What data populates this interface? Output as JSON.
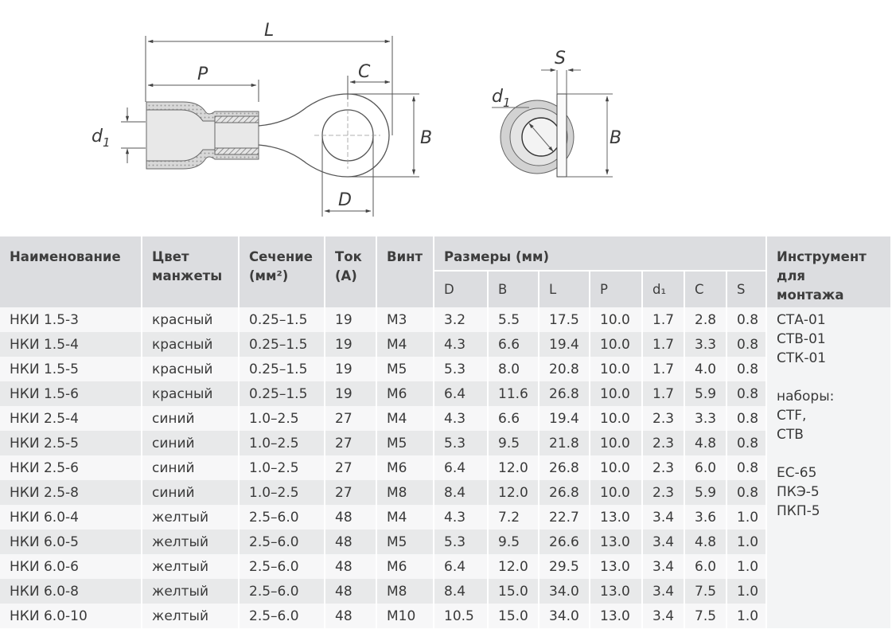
{
  "drawing": {
    "labels": {
      "L": "L",
      "P": "P",
      "C": "C",
      "B": "B",
      "D": "D",
      "d1": "d",
      "d1_sub": "1",
      "S": "S",
      "B2": "B",
      "d1b": "d",
      "d1b_sub": "1"
    }
  },
  "table": {
    "headers": {
      "name": "Наименование",
      "color_1": "Цвет",
      "color_2": "манжеты",
      "section_1": "Сечение",
      "section_2": "(мм²)",
      "current_1": "Ток",
      "current_2": "(А)",
      "screw": "Винт",
      "dimensions": "Размеры (мм)",
      "tool_1": "Инструмент",
      "tool_2": "для",
      "tool_3": "монтажа",
      "dims": [
        "D",
        "B",
        "L",
        "P",
        "d₁",
        "C",
        "S"
      ]
    },
    "rows": [
      [
        "НКИ 1.5-3",
        "красный",
        "0.25–1.5",
        "19",
        "М3",
        "3.2",
        "5.5",
        "17.5",
        "10.0",
        "1.7",
        "2.8",
        "0.8"
      ],
      [
        "НКИ 1.5-4",
        "красный",
        "0.25–1.5",
        "19",
        "М4",
        "4.3",
        "6.6",
        "19.4",
        "10.0",
        "1.7",
        "3.3",
        "0.8"
      ],
      [
        "НКИ 1.5-5",
        "красный",
        "0.25–1.5",
        "19",
        "М5",
        "5.3",
        "8.0",
        "20.8",
        "10.0",
        "1.7",
        "4.0",
        "0.8"
      ],
      [
        "НКИ 1.5-6",
        "красный",
        "0.25–1.5",
        "19",
        "М6",
        "6.4",
        "11.6",
        "26.8",
        "10.0",
        "1.7",
        "5.9",
        "0.8"
      ],
      [
        "НКИ 2.5-4",
        "синий",
        "1.0–2.5",
        "27",
        "М4",
        "4.3",
        "6.6",
        "19.4",
        "10.0",
        "2.3",
        "3.3",
        "0.8"
      ],
      [
        "НКИ 2.5-5",
        "синий",
        "1.0–2.5",
        "27",
        "М5",
        "5.3",
        "9.5",
        "21.8",
        "10.0",
        "2.3",
        "4.8",
        "0.8"
      ],
      [
        "НКИ 2.5-6",
        "синий",
        "1.0–2.5",
        "27",
        "М6",
        "6.4",
        "12.0",
        "26.8",
        "10.0",
        "2.3",
        "6.0",
        "0.8"
      ],
      [
        "НКИ 2.5-8",
        "синий",
        "1.0–2.5",
        "27",
        "М8",
        "8.4",
        "12.0",
        "26.8",
        "10.0",
        "2.3",
        "5.9",
        "0.8"
      ],
      [
        "НКИ 6.0-4",
        "желтый",
        "2.5–6.0",
        "48",
        "М4",
        "4.3",
        "7.2",
        "22.7",
        "13.0",
        "3.4",
        "3.6",
        "1.0"
      ],
      [
        "НКИ 6.0-5",
        "желтый",
        "2.5–6.0",
        "48",
        "М5",
        "5.3",
        "9.5",
        "26.6",
        "13.0",
        "3.4",
        "4.8",
        "1.0"
      ],
      [
        "НКИ 6.0-6",
        "желтый",
        "2.5–6.0",
        "48",
        "М6",
        "6.4",
        "12.0",
        "29.5",
        "13.0",
        "3.4",
        "6.0",
        "1.0"
      ],
      [
        "НКИ 6.0-8",
        "желтый",
        "2.5–6.0",
        "48",
        "М8",
        "8.4",
        "15.0",
        "34.0",
        "13.0",
        "3.4",
        "7.5",
        "1.0"
      ],
      [
        "НКИ 6.0-10",
        "желтый",
        "2.5–6.0",
        "48",
        "М10",
        "10.5",
        "15.0",
        "34.0",
        "13.0",
        "3.4",
        "7.5",
        "1.0"
      ]
    ],
    "tools": [
      "СТА-01",
      "СТВ-01",
      "СТК-01",
      "",
      "наборы:",
      "СТF,",
      "СТВ",
      "",
      "ЕС-65",
      "ПКЭ-5",
      "ПКП-5"
    ]
  }
}
